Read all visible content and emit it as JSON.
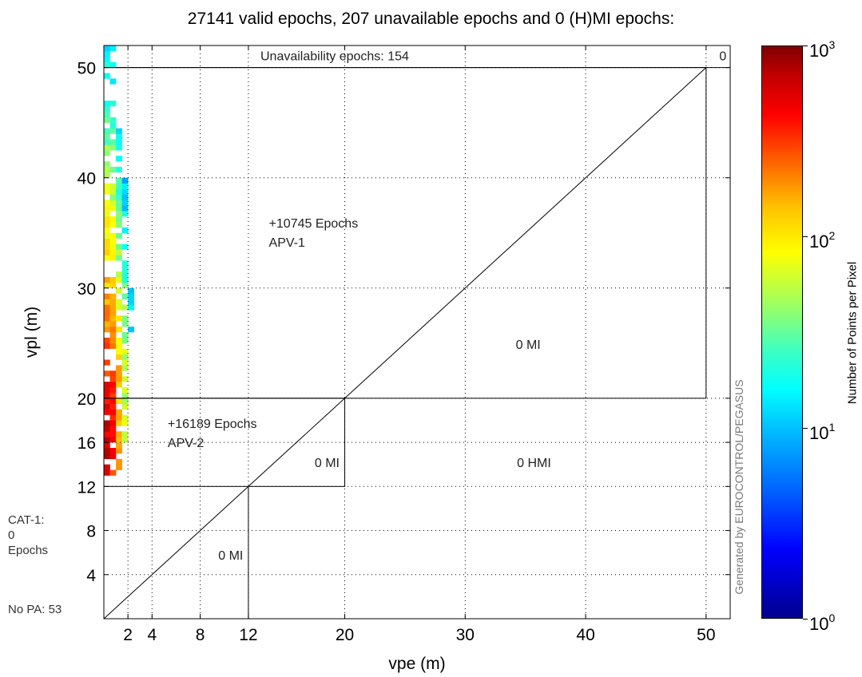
{
  "chart_data": {
    "type": "heatmap",
    "title": "27141 valid epochs, 207 unavailable epochs and 0 (H)MI epochs:",
    "xlabel": "vpe (m)",
    "ylabel": "vpl (m)",
    "xlim": [
      0,
      52
    ],
    "ylim": [
      0,
      52
    ],
    "x_ticks": [
      2,
      4,
      8,
      12,
      20,
      30,
      40,
      50
    ],
    "y_ticks": [
      4,
      8,
      12,
      16,
      20,
      30,
      40,
      50
    ],
    "grid": true,
    "regions": [
      {
        "name": "APV-1",
        "x_range": [
          0,
          50
        ],
        "y_range": [
          20,
          50
        ],
        "label_lines": [
          "+10745 Epochs",
          "APV-1"
        ]
      },
      {
        "name": "APV-2",
        "x_range": [
          0,
          20
        ],
        "y_range": [
          12,
          20
        ],
        "label_lines": [
          "+16189 Epochs",
          "APV-2"
        ]
      },
      {
        "name": "CAT-1",
        "x_range": [
          0,
          12
        ],
        "y_range": [
          0,
          12
        ]
      }
    ],
    "annotations": [
      {
        "text": "Unavailability epochs: 154",
        "x": 13,
        "y": 51.1
      },
      {
        "text": "0",
        "x": 51.1,
        "y": 51.1
      },
      {
        "text": "0 MI",
        "x": 34.2,
        "y": 24.9
      },
      {
        "text": "0 MI",
        "x": 17.5,
        "y": 14.2
      },
      {
        "text": "0 HMI",
        "x": 34.3,
        "y": 14.2
      },
      {
        "text": "0 MI",
        "x": 9.5,
        "y": 5.8
      }
    ],
    "diagonal": {
      "from": [
        0,
        0
      ],
      "to": [
        50,
        50
      ]
    },
    "colorbar": {
      "label": "Number of Points per Pixel",
      "scale": "log",
      "ticks": [
        {
          "base": "10",
          "exp": "0",
          "value": 1
        },
        {
          "base": "10",
          "exp": "1",
          "value": 10
        },
        {
          "base": "10",
          "exp": "2",
          "value": 100
        },
        {
          "base": "10",
          "exp": "3",
          "value": 1000
        }
      ]
    },
    "density_columns": [
      {
        "x": 0.25,
        "y_min": 12.5,
        "y_max": 51.8,
        "peak": 600
      },
      {
        "x": 0.75,
        "y_min": 12.5,
        "y_max": 51.8,
        "peak": 400
      },
      {
        "x": 1.25,
        "y_min": 13,
        "y_max": 45,
        "peak": 150
      },
      {
        "x": 1.75,
        "y_min": 15.5,
        "y_max": 40,
        "peak": 60
      },
      {
        "x": 2.25,
        "y_min": 26,
        "y_max": 30,
        "peak": 15
      }
    ],
    "side_notes": {
      "cat1": [
        "CAT-1:",
        "0",
        "Epochs"
      ],
      "no_pa": "No PA: 53"
    },
    "watermark": "Generated by EUROCONTROL/PEGASUS"
  }
}
